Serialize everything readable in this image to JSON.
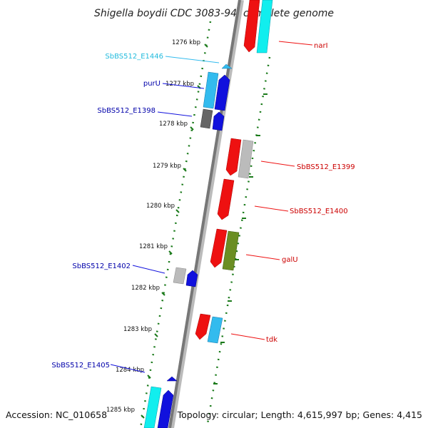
{
  "title": "Shigella boydii CDC 3083-94, complete genome",
  "footer": {
    "accession": "Accession: NC_010658",
    "summary": "Topology: circular; Length: 4,615,997 bp; Genes: 4,415"
  },
  "colors": {
    "red": "#ee1111",
    "blue": "#1111dd",
    "light_blue": "#33bbee",
    "cyan": "#11eeee",
    "gray": "#bbbbbb",
    "dark_gray": "#666666",
    "olive": "#6b8e23",
    "tick_green": "#1a7a1a"
  },
  "kbp_labels": [
    "1276 kbp",
    "1277 kbp",
    "1278 kbp",
    "1279 kbp",
    "1280 kbp",
    "1281 kbp",
    "1282 kbp",
    "1283 kbp",
    "1284 kbp",
    "1285 kbp"
  ],
  "gene_labels": {
    "narI": "narI",
    "SbBS512_E1446": "SbBS512_E1446",
    "purU": "purU",
    "SbBS512_E1398": "SbBS512_E1398",
    "SbBS512_E1399": "SbBS512_E1399",
    "SbBS512_E1400": "SbBS512_E1400",
    "galU": "galU",
    "SbBS512_E1402": "SbBS512_E1402",
    "tdk": "tdk",
    "SbBS512_E1405": "SbBS512_E1405"
  }
}
